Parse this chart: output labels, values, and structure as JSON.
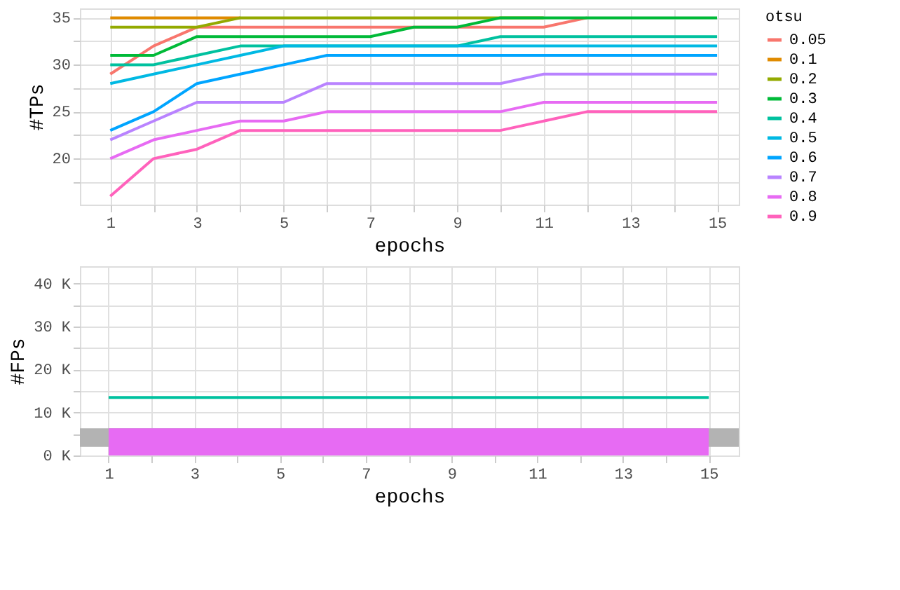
{
  "chart_data": [
    {
      "type": "line",
      "xlabel": "epochs",
      "ylabel": "#TPs",
      "legend_title": "otsu",
      "legend": "right",
      "grid": true,
      "x": [
        1,
        2,
        3,
        4,
        5,
        6,
        7,
        8,
        9,
        10,
        11,
        12,
        13,
        14,
        15
      ],
      "xlim": [
        0.3,
        15.5
      ],
      "ylim": [
        15.1,
        36
      ],
      "xticks": [
        1,
        {
          "value": 2,
          "label": null
        },
        3,
        {
          "value": 4,
          "label": null
        },
        5,
        {
          "value": 6,
          "label": null
        },
        7,
        {
          "value": 8,
          "label": null
        },
        9,
        {
          "value": 10,
          "label": null
        },
        11,
        {
          "value": 12,
          "label": null
        },
        13,
        {
          "value": 14,
          "label": null
        },
        15
      ],
      "yticks": [
        {
          "value": 17.5,
          "label": null
        },
        20,
        {
          "value": 22.5,
          "label": null
        },
        25,
        {
          "value": 27.5,
          "label": null
        },
        30,
        {
          "value": 32.5,
          "label": null
        },
        35
      ],
      "series": [
        {
          "name": "0.05",
          "color": "#f8766d",
          "values": [
            29,
            32,
            34,
            34,
            34,
            34,
            34,
            34,
            34,
            34,
            34,
            35,
            null,
            null,
            null
          ]
        },
        {
          "name": "0.1",
          "color": "#e08b00",
          "values": [
            35,
            35,
            35,
            35,
            null,
            null,
            null,
            null,
            null,
            null,
            null,
            null,
            null,
            null,
            null
          ]
        },
        {
          "name": "0.2",
          "color": "#93aa00",
          "values": [
            34,
            34,
            34,
            35,
            35,
            35,
            35,
            35,
            35,
            35,
            35,
            null,
            null,
            null,
            null
          ]
        },
        {
          "name": "0.3",
          "color": "#00ba38",
          "values": [
            31,
            31,
            33,
            33,
            33,
            33,
            33,
            34,
            34,
            35,
            35,
            35,
            35,
            35,
            35
          ]
        },
        {
          "name": "0.4",
          "color": "#00c19f",
          "values": [
            30,
            30,
            31,
            32,
            32,
            32,
            32,
            32,
            32,
            33,
            33,
            33,
            33,
            33,
            33
          ]
        },
        {
          "name": "0.5",
          "color": "#00b9e3",
          "values": [
            28,
            29,
            30,
            31,
            32,
            32,
            32,
            32,
            32,
            32,
            32,
            32,
            32,
            32,
            32
          ]
        },
        {
          "name": "0.6",
          "color": "#00a5ff",
          "values": [
            23,
            25,
            28,
            29,
            30,
            31,
            31,
            31,
            31,
            31,
            31,
            31,
            31,
            31,
            31
          ]
        },
        {
          "name": "0.7",
          "color": "#b983ff",
          "values": [
            22,
            24,
            26,
            26,
            26,
            28,
            28,
            28,
            28,
            28,
            29,
            29,
            29,
            29,
            29
          ]
        },
        {
          "name": "0.8",
          "color": "#e76bf3",
          "values": [
            20,
            22,
            23,
            24,
            24,
            25,
            25,
            25,
            25,
            25,
            26,
            26,
            26,
            26,
            26
          ]
        },
        {
          "name": "0.9",
          "color": "#ff62bc",
          "values": [
            16,
            20,
            21,
            23,
            23,
            23,
            23,
            23,
            23,
            23,
            24,
            25,
            25,
            25,
            25
          ]
        }
      ]
    },
    {
      "type": "line",
      "xlabel": "epochs",
      "ylabel": "#FPs",
      "grid": true,
      "x": [
        1,
        2,
        3,
        4,
        5,
        6,
        7,
        8,
        9,
        10,
        11,
        12,
        13,
        14,
        15
      ],
      "xlim": [
        0.33,
        15.7
      ],
      "ylim": [
        0,
        44000
      ],
      "xticks": [
        1,
        {
          "value": 2,
          "label": null
        },
        3,
        {
          "value": 4,
          "label": null
        },
        5,
        {
          "value": 6,
          "label": null
        },
        7,
        {
          "value": 8,
          "label": null
        },
        9,
        {
          "value": 10,
          "label": null
        },
        11,
        {
          "value": 12,
          "label": null
        },
        13,
        {
          "value": 14,
          "label": null
        },
        15
      ],
      "yticks": [
        {
          "value": 0,
          "label": "0 K"
        },
        {
          "value": 5000,
          "label": null
        },
        {
          "value": 10000,
          "label": "10 K"
        },
        {
          "value": 15000,
          "label": null
        },
        {
          "value": 20000,
          "label": "20 K"
        },
        {
          "value": 25000,
          "label": null
        },
        {
          "value": 30000,
          "label": "30 K"
        },
        {
          "value": 35000,
          "label": null
        },
        {
          "value": 40000,
          "label": "40 K"
        }
      ],
      "bands": [
        {
          "axis": "y",
          "from": 2000,
          "to": 6300,
          "color": "#b3b3b3"
        }
      ],
      "series": [
        {
          "name": "0.4",
          "color": "#00c19f",
          "values": [
            13500,
            13500,
            13500,
            13500,
            13500,
            13500,
            13500,
            13500,
            13500,
            13500,
            13500,
            13500,
            13500,
            13500,
            13500
          ]
        },
        {
          "name": "0.8",
          "color": "#e76bf3",
          "type": "area",
          "values": [
            6300,
            6300,
            6300,
            6300,
            6300,
            6300,
            6300,
            6300,
            6300,
            6300,
            6300,
            6300,
            6300,
            6300,
            6300
          ]
        }
      ]
    }
  ]
}
